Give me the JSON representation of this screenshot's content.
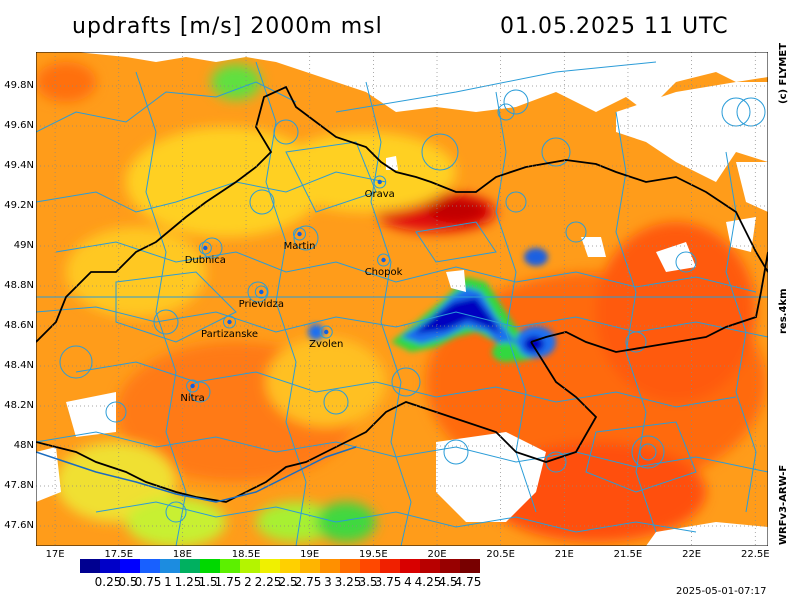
{
  "title": {
    "left": "updrafts [m/s] 2000m msl",
    "right": "01.05.2025 11 UTC"
  },
  "side_labels": {
    "copyright": "(c) FLYMET",
    "resolution": "res.4km",
    "model": "WRFv3-ARW-F"
  },
  "timestamp": "2025-05-01-07:17",
  "lat_labels": [
    "49.8N",
    "49.6N",
    "49.4N",
    "49.2N",
    "49N",
    "48.8N",
    "48.6N",
    "48.4N",
    "48.2N",
    "48N",
    "47.8N",
    "47.6N"
  ],
  "lon_labels": [
    "17E",
    "17.5E",
    "18E",
    "18.5E",
    "19E",
    "19.5E",
    "20E",
    "20.5E",
    "21E",
    "21.5E",
    "22E",
    "22.5E"
  ],
  "cities": [
    {
      "name": "Orava",
      "lon": 19.55,
      "lat": 49.32
    },
    {
      "name": "Martin",
      "lon": 18.92,
      "lat": 49.06
    },
    {
      "name": "Dubnica",
      "lon": 18.18,
      "lat": 48.99
    },
    {
      "name": "Chopok",
      "lon": 19.58,
      "lat": 48.93
    },
    {
      "name": "Prievidza",
      "lon": 18.62,
      "lat": 48.77
    },
    {
      "name": "Partizanske",
      "lon": 18.37,
      "lat": 48.62
    },
    {
      "name": "Zvolen",
      "lon": 19.13,
      "lat": 48.57
    },
    {
      "name": "Nitra",
      "lon": 18.08,
      "lat": 48.3
    }
  ],
  "legend": {
    "labels": [
      "0.25",
      "0.5",
      "0.75",
      "1",
      "1.25",
      "1.5",
      "1.75",
      "2",
      "2.25",
      "2.5",
      "2.75",
      "3",
      "3.25",
      "3.5",
      "3.75",
      "4",
      "4.25",
      "4.5",
      "4.75"
    ],
    "colors": [
      "#000090",
      "#0000c8",
      "#0000ff",
      "#1860ff",
      "#1c8ce0",
      "#00b060",
      "#00d800",
      "#5cf000",
      "#b4f400",
      "#f0f000",
      "#ffd000",
      "#ffb400",
      "#ff9000",
      "#ff6c00",
      "#ff4800",
      "#f02000",
      "#d80000",
      "#b80000",
      "#980000",
      "#780000"
    ]
  },
  "colors": {
    "map_bg": "#ff9c1a",
    "airspace": "#2a9cd8",
    "border": "#000000"
  }
}
